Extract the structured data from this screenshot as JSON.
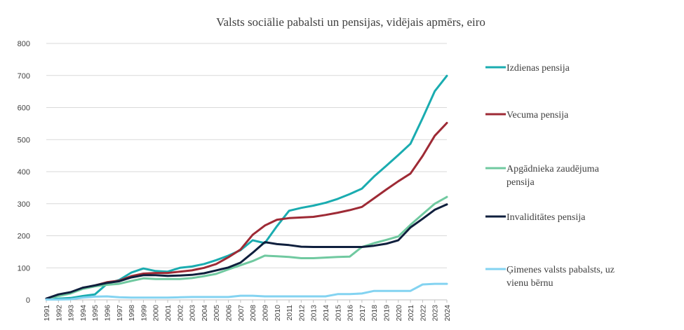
{
  "chart_data": {
    "type": "line",
    "title": "Valsts sociālie pabalsti un pensijas, vidējais apmērs, eiro",
    "xlabel": "",
    "ylabel": "",
    "ylim": [
      0,
      800
    ],
    "yticks": [
      0,
      100,
      200,
      300,
      400,
      500,
      600,
      700,
      800
    ],
    "grid": true,
    "legend_position": "right",
    "categories": [
      "1991",
      "1992",
      "1993",
      "1994",
      "1995",
      "1996",
      "1997",
      "1998",
      "1999",
      "2000",
      "2001",
      "2002",
      "2003",
      "2004",
      "2005",
      "2006",
      "2007",
      "2008",
      "2009",
      "2010",
      "2011",
      "2012",
      "2013",
      "2014",
      "2015",
      "2016",
      "2017",
      "2018",
      "2019",
      "2020",
      "2021",
      "2022",
      "2023",
      "2024"
    ],
    "series": [
      {
        "name": "Izdienas pensija",
        "color": "#1aacb0",
        "values": [
          3,
          4,
          6,
          12,
          17,
          50,
          62,
          85,
          98,
          90,
          88,
          100,
          104,
          112,
          124,
          138,
          155,
          186,
          177,
          230,
          278,
          287,
          294,
          303,
          315,
          330,
          347,
          385,
          418,
          452,
          487,
          567,
          651,
          699
        ]
      },
      {
        "name": "Vecuma pensija",
        "color": "#9e2a35",
        "values": [
          4,
          15,
          23,
          36,
          45,
          55,
          60,
          74,
          82,
          84,
          84,
          88,
          92,
          100,
          112,
          133,
          157,
          203,
          232,
          250,
          255,
          257,
          259,
          265,
          272,
          280,
          290,
          317,
          344,
          370,
          394,
          449,
          512,
          552
        ]
      },
      {
        "name": "Apgādnieka zaudējuma pensija",
        "color": "#70c9a0",
        "values": [
          3,
          12,
          20,
          34,
          42,
          47,
          50,
          59,
          67,
          65,
          65,
          65,
          68,
          74,
          81,
          95,
          108,
          121,
          138,
          136,
          134,
          130,
          130,
          132,
          134,
          135,
          165,
          177,
          187,
          198,
          234,
          267,
          300,
          321
        ]
      },
      {
        "name": "Invaliditātes pensija",
        "color": "#0f1f3d",
        "values": [
          4,
          17,
          24,
          38,
          45,
          53,
          58,
          70,
          77,
          77,
          75,
          76,
          78,
          83,
          92,
          101,
          116,
          147,
          180,
          174,
          171,
          166,
          165,
          165,
          165,
          165,
          165,
          169,
          175,
          186,
          226,
          253,
          281,
          298
        ]
      },
      {
        "name": "Ģimenes valsts pabalsts, uz vienu bērnu",
        "color": "#83d3f1",
        "values": [
          1,
          1,
          2,
          7,
          10,
          11,
          8,
          7,
          7,
          7,
          7,
          8,
          9,
          9,
          9,
          9,
          13,
          13,
          11,
          11,
          11,
          11,
          11,
          11,
          18,
          18,
          20,
          28,
          28,
          28,
          28,
          48,
          50,
          50
        ]
      }
    ],
    "legend": [
      {
        "lines": [
          "Izdienas pensija"
        ]
      },
      {
        "lines": [
          "Vecuma pensija"
        ]
      },
      {
        "lines": [
          "Apgādnieka zaudējuma",
          "pensija"
        ]
      },
      {
        "lines": [
          "Invaliditātes pensija"
        ]
      },
      {
        "lines": [
          "Ģimenes valsts pabalsts, uz",
          "vienu bērnu"
        ]
      }
    ]
  }
}
